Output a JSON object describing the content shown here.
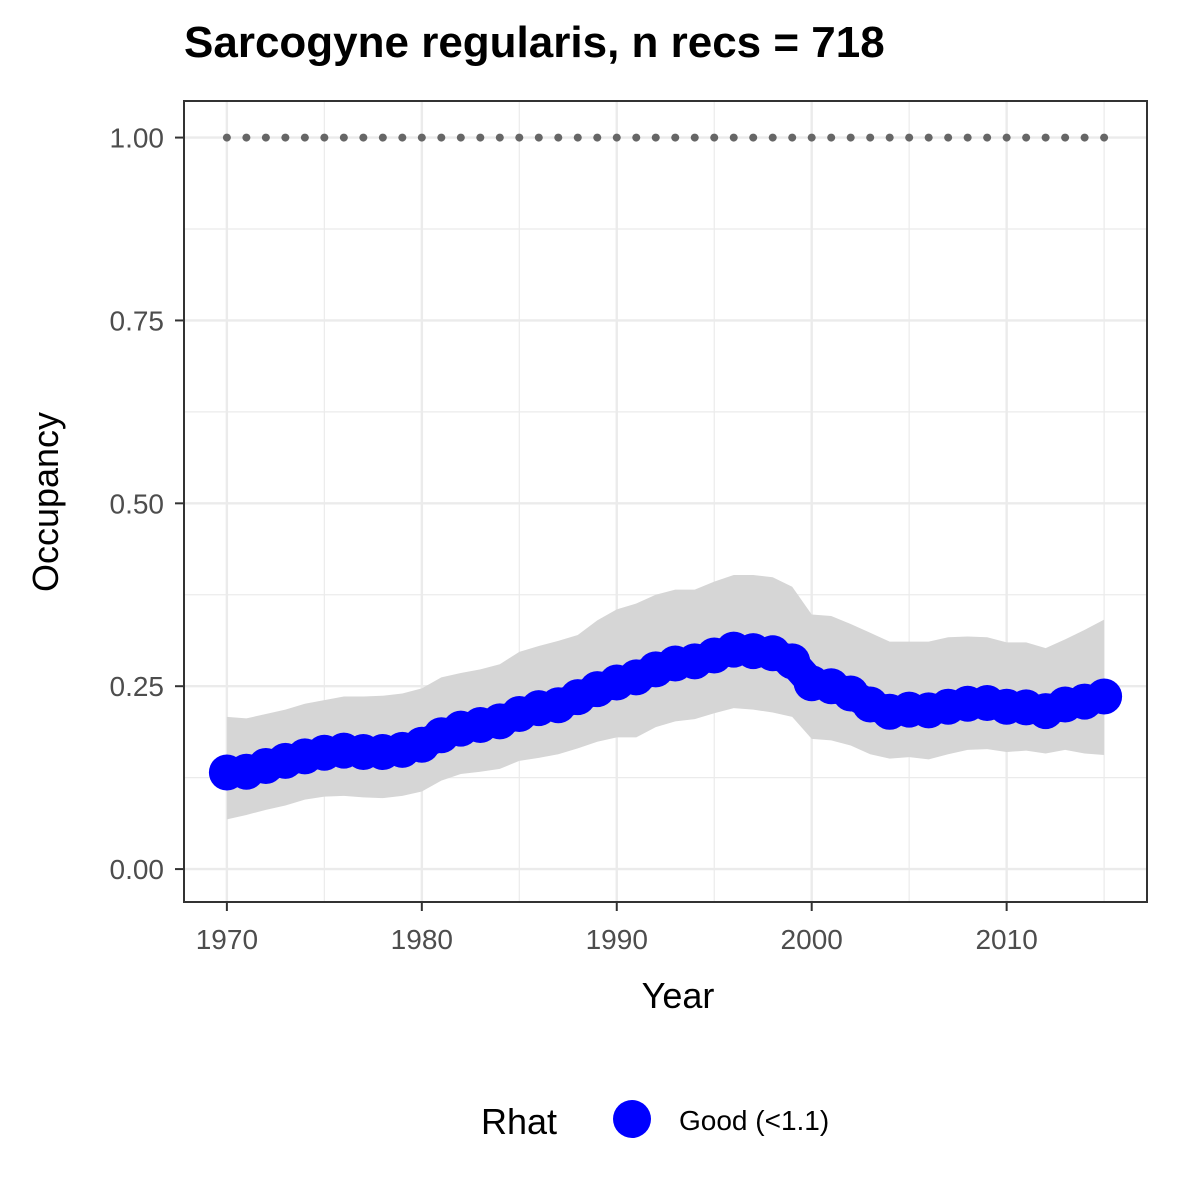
{
  "chart_data": {
    "type": "line",
    "title": "Sarcogyne regularis, n recs = 718",
    "xlabel": "Year",
    "ylabel": "Occupancy",
    "xlim": [
      1967.8,
      2017.2
    ],
    "ylim": [
      -0.045,
      1.05
    ],
    "x_ticks": [
      1970,
      1980,
      1990,
      2000,
      2010
    ],
    "y_ticks": [
      0.0,
      0.25,
      0.5,
      0.75,
      1.0
    ],
    "y_tick_labels": [
      "0.00",
      "0.25",
      "0.50",
      "0.75",
      "1.00"
    ],
    "grid": true,
    "x": [
      1970,
      1971,
      1972,
      1973,
      1974,
      1975,
      1976,
      1977,
      1978,
      1979,
      1980,
      1981,
      1982,
      1983,
      1984,
      1985,
      1986,
      1987,
      1988,
      1989,
      1990,
      1991,
      1992,
      1993,
      1994,
      1995,
      1996,
      1997,
      1998,
      1999,
      2000,
      2001,
      2002,
      2003,
      2004,
      2005,
      2006,
      2007,
      2008,
      2009,
      2010,
      2011,
      2012,
      2013,
      2014,
      2015
    ],
    "series": [
      {
        "name": "Good (<1.1)",
        "color": "#0000ff",
        "values": [
          0.132,
          0.133,
          0.141,
          0.148,
          0.154,
          0.159,
          0.162,
          0.16,
          0.16,
          0.163,
          0.17,
          0.183,
          0.192,
          0.197,
          0.202,
          0.212,
          0.22,
          0.224,
          0.235,
          0.246,
          0.255,
          0.262,
          0.273,
          0.281,
          0.284,
          0.292,
          0.3,
          0.298,
          0.295,
          0.284,
          0.254,
          0.25,
          0.24,
          0.225,
          0.215,
          0.218,
          0.217,
          0.222,
          0.226,
          0.227,
          0.222,
          0.221,
          0.216,
          0.225,
          0.229,
          0.236
        ]
      }
    ],
    "band_upper": [
      0.208,
      0.206,
      0.212,
      0.218,
      0.226,
      0.231,
      0.236,
      0.236,
      0.237,
      0.24,
      0.247,
      0.262,
      0.268,
      0.273,
      0.28,
      0.297,
      0.305,
      0.312,
      0.32,
      0.34,
      0.355,
      0.363,
      0.375,
      0.382,
      0.382,
      0.393,
      0.402,
      0.402,
      0.399,
      0.386,
      0.348,
      0.346,
      0.335,
      0.323,
      0.311,
      0.311,
      0.311,
      0.317,
      0.318,
      0.317,
      0.31,
      0.31,
      0.302,
      0.314,
      0.327,
      0.341
    ],
    "band_lower": [
      0.068,
      0.074,
      0.081,
      0.087,
      0.095,
      0.099,
      0.1,
      0.098,
      0.097,
      0.1,
      0.106,
      0.121,
      0.13,
      0.133,
      0.137,
      0.148,
      0.152,
      0.157,
      0.165,
      0.174,
      0.18,
      0.18,
      0.194,
      0.202,
      0.205,
      0.213,
      0.22,
      0.218,
      0.214,
      0.208,
      0.178,
      0.176,
      0.169,
      0.157,
      0.151,
      0.153,
      0.15,
      0.157,
      0.163,
      0.164,
      0.16,
      0.162,
      0.158,
      0.163,
      0.158,
      0.156
    ],
    "reference_line": {
      "y": 1.0,
      "style": "dotted",
      "color": "#666666"
    },
    "band_color": "#d6d6d6",
    "legend": {
      "title": "Rhat",
      "position": "bottom",
      "entries": [
        "Good (<1.1)"
      ]
    }
  }
}
